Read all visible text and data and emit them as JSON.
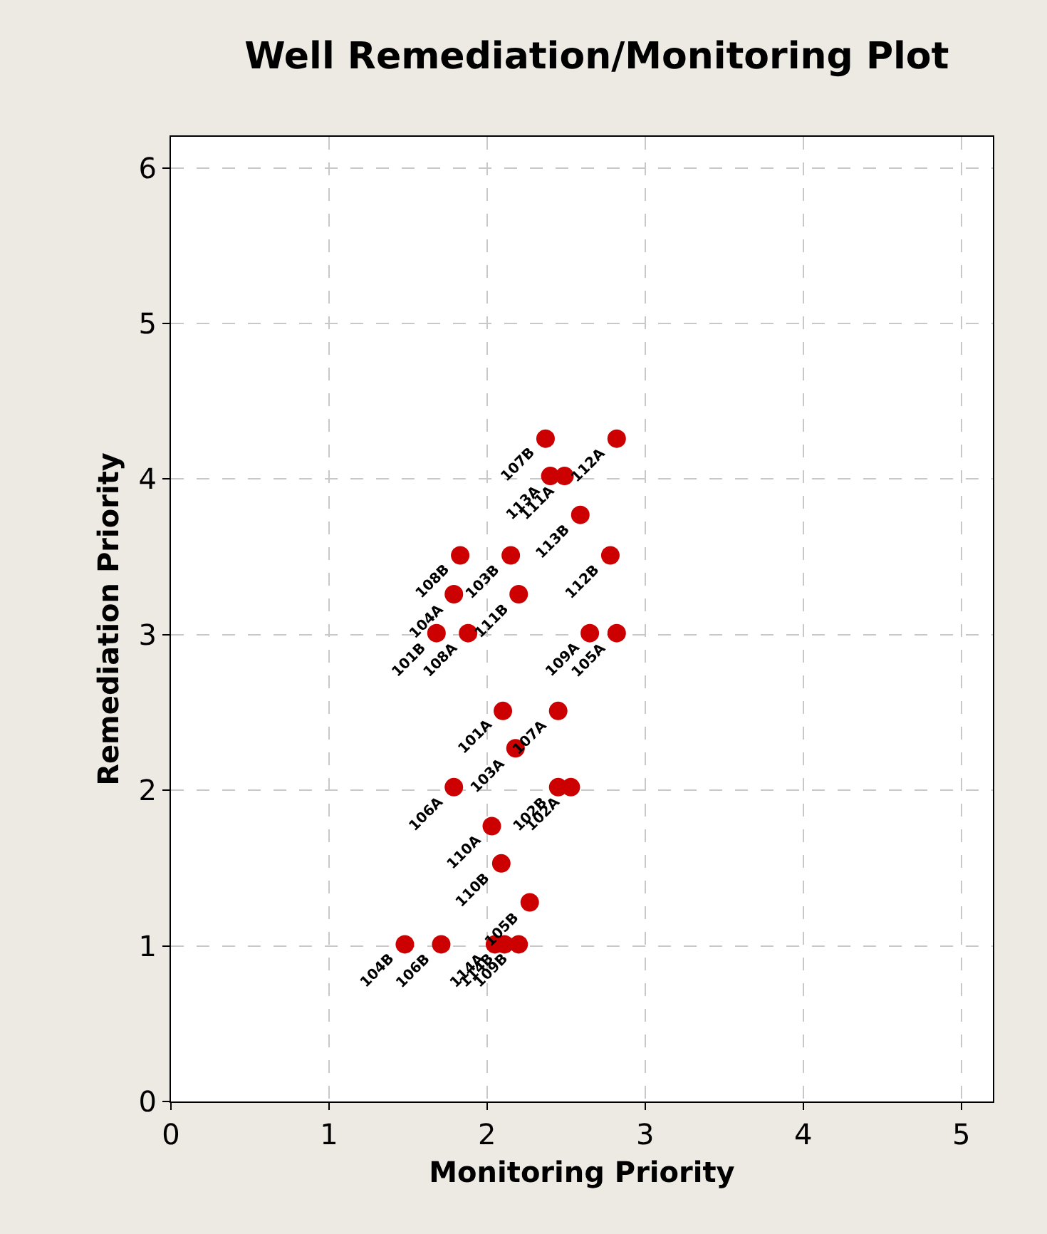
{
  "chart_data": {
    "type": "scatter",
    "title": "Well Remediation/Monitoring Plot",
    "xlabel": "Monitoring Priority",
    "ylabel": "Remediation Priority",
    "x": [
      2.37,
      2.82,
      2.4,
      2.49,
      2.59,
      1.83,
      2.15,
      2.78,
      1.79,
      2.2,
      1.68,
      1.88,
      2.65,
      2.82,
      2.1,
      2.45,
      2.18,
      1.79,
      2.45,
      2.53,
      2.03,
      2.09,
      2.27,
      1.48,
      1.71,
      2.05,
      2.11,
      2.2
    ],
    "values": [
      4.26,
      4.26,
      4.02,
      4.02,
      3.77,
      3.51,
      3.51,
      3.51,
      3.26,
      3.26,
      3.01,
      3.01,
      3.01,
      3.01,
      2.51,
      2.51,
      2.27,
      2.02,
      2.02,
      2.02,
      1.77,
      1.53,
      1.28,
      1.01,
      1.01,
      1.01,
      1.01,
      1.01
    ],
    "annotations": [
      {
        "text": "107B",
        "x": 2.37,
        "y": 4.26
      },
      {
        "text": "112A",
        "x": 2.82,
        "y": 4.26
      },
      {
        "text": "113A",
        "x": 2.4,
        "y": 4.02
      },
      {
        "text": "111A",
        "x": 2.49,
        "y": 4.02
      },
      {
        "text": "113B",
        "x": 2.59,
        "y": 3.77
      },
      {
        "text": "108B",
        "x": 1.83,
        "y": 3.51
      },
      {
        "text": "103B",
        "x": 2.15,
        "y": 3.51
      },
      {
        "text": "112B",
        "x": 2.78,
        "y": 3.51
      },
      {
        "text": "104A",
        "x": 1.79,
        "y": 3.26
      },
      {
        "text": "111B",
        "x": 2.2,
        "y": 3.26
      },
      {
        "text": "101B",
        "x": 1.68,
        "y": 3.01
      },
      {
        "text": "108A",
        "x": 1.88,
        "y": 3.01
      },
      {
        "text": "109A",
        "x": 2.65,
        "y": 3.01
      },
      {
        "text": "105A",
        "x": 2.82,
        "y": 3.01
      },
      {
        "text": "101A",
        "x": 2.1,
        "y": 2.51
      },
      {
        "text": "107A",
        "x": 2.45,
        "y": 2.51
      },
      {
        "text": "103A",
        "x": 2.18,
        "y": 2.27
      },
      {
        "text": "106A",
        "x": 1.79,
        "y": 2.02
      },
      {
        "text": "102B",
        "x": 2.45,
        "y": 2.02
      },
      {
        "text": "102A",
        "x": 2.53,
        "y": 2.02
      },
      {
        "text": "110A",
        "x": 2.03,
        "y": 1.77
      },
      {
        "text": "110B",
        "x": 2.09,
        "y": 1.53
      },
      {
        "text": "105B",
        "x": 2.27,
        "y": 1.28
      },
      {
        "text": "104B",
        "x": 1.48,
        "y": 1.01
      },
      {
        "text": "106B",
        "x": 1.71,
        "y": 1.01
      },
      {
        "text": "114A",
        "x": 2.05,
        "y": 1.01
      },
      {
        "text": "114B",
        "x": 2.11,
        "y": 1.01
      },
      {
        "text": "109B",
        "x": 2.2,
        "y": 1.01
      }
    ],
    "color": "#cc0000",
    "marker": "circle",
    "xlim": [
      0,
      5.2
    ],
    "xticks": [
      0,
      1,
      2,
      3,
      4,
      5
    ],
    "ylim": [
      0,
      6.2
    ],
    "yticks": [
      0,
      1,
      2,
      3,
      4,
      5,
      6
    ],
    "grid": true
  }
}
